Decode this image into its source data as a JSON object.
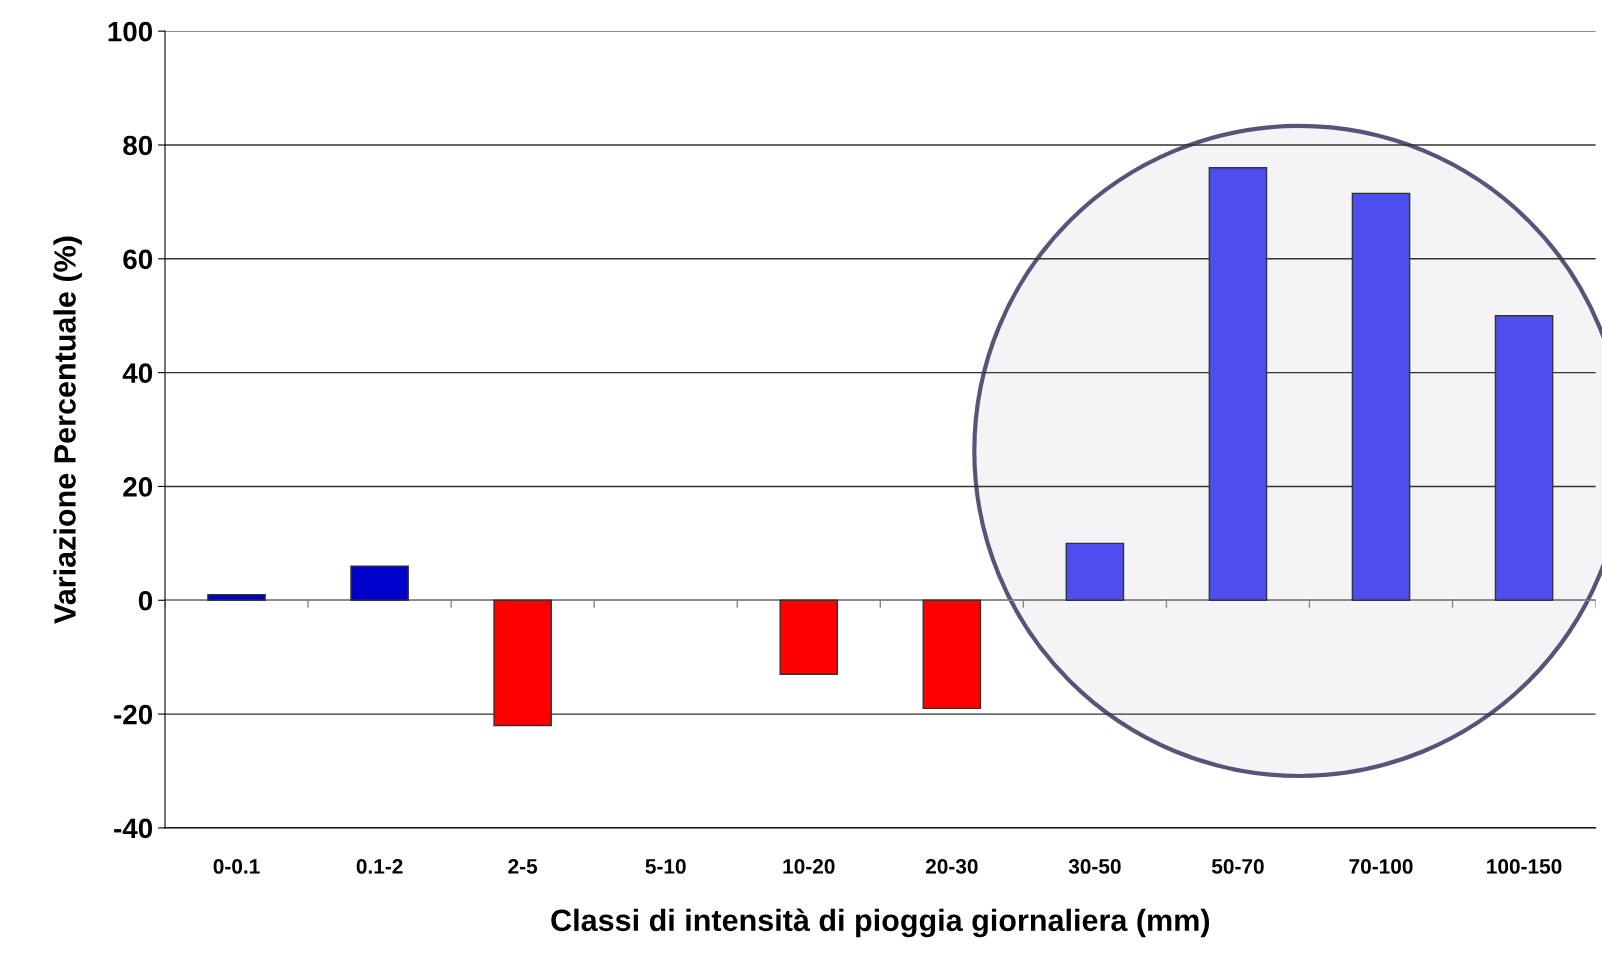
{
  "chart_data": {
    "type": "bar",
    "xlabel": "Classi di intensità di pioggia giornaliera (mm)",
    "ylabel": "Variazione Percentuale (%)",
    "categories": [
      "0-0.1",
      "0.1-2",
      "2-5",
      "5-10",
      "10-20",
      "20-30",
      "30-50",
      "50-70",
      "70-100",
      "100-150"
    ],
    "values": [
      1,
      6,
      -22,
      null,
      -13,
      -19,
      10,
      76,
      71.5,
      50
    ],
    "colors": [
      "#0000cc",
      "#0000cc",
      "#ff0000",
      null,
      "#ff0000",
      "#ff0000",
      "#4d4df0",
      "#4d4df0",
      "#4d4df0",
      "#4d4df0"
    ],
    "ylim": [
      -40,
      100
    ],
    "yticks": [
      -40,
      -20,
      0,
      20,
      40,
      60,
      80,
      100
    ],
    "grid": "y",
    "legend": false
  }
}
